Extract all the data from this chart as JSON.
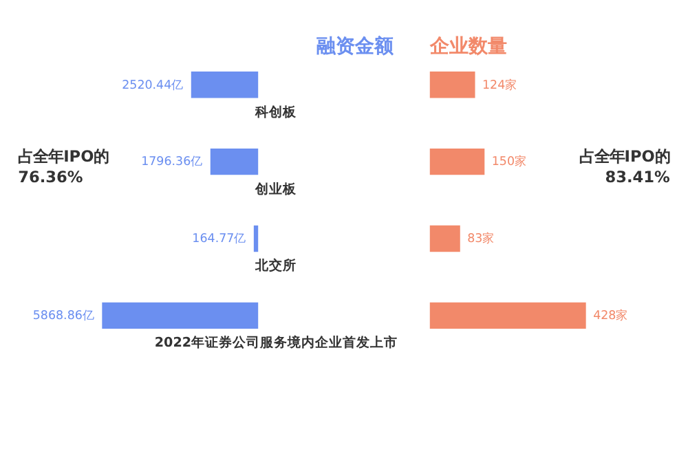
{
  "chart_data": [
    {
      "type": "bar",
      "orientation": "horizontal",
      "title": "融资金额",
      "categories": [
        "科创板",
        "创业板",
        "北交所",
        "2022年证券公司服务境内企业首发上市"
      ],
      "values": [
        2520.44,
        1796.36,
        164.77,
        5868.86
      ],
      "value_labels": [
        "2520.44亿",
        "1796.36亿",
        "164.77亿",
        "5868.86亿"
      ],
      "color": "#6b8ff0",
      "annotations": [
        "占全年IPO的\n76.36%"
      ]
    },
    {
      "type": "bar",
      "orientation": "horizontal",
      "title": "企业数量",
      "categories": [
        null,
        null,
        null,
        null
      ],
      "values": [
        124,
        150,
        83,
        428
      ],
      "value_labels": [
        "124家",
        "150家",
        "83家",
        "428家"
      ],
      "color": "#f2896a",
      "annotations": [
        "占全年IPO的\n83.41%"
      ]
    }
  ]
}
